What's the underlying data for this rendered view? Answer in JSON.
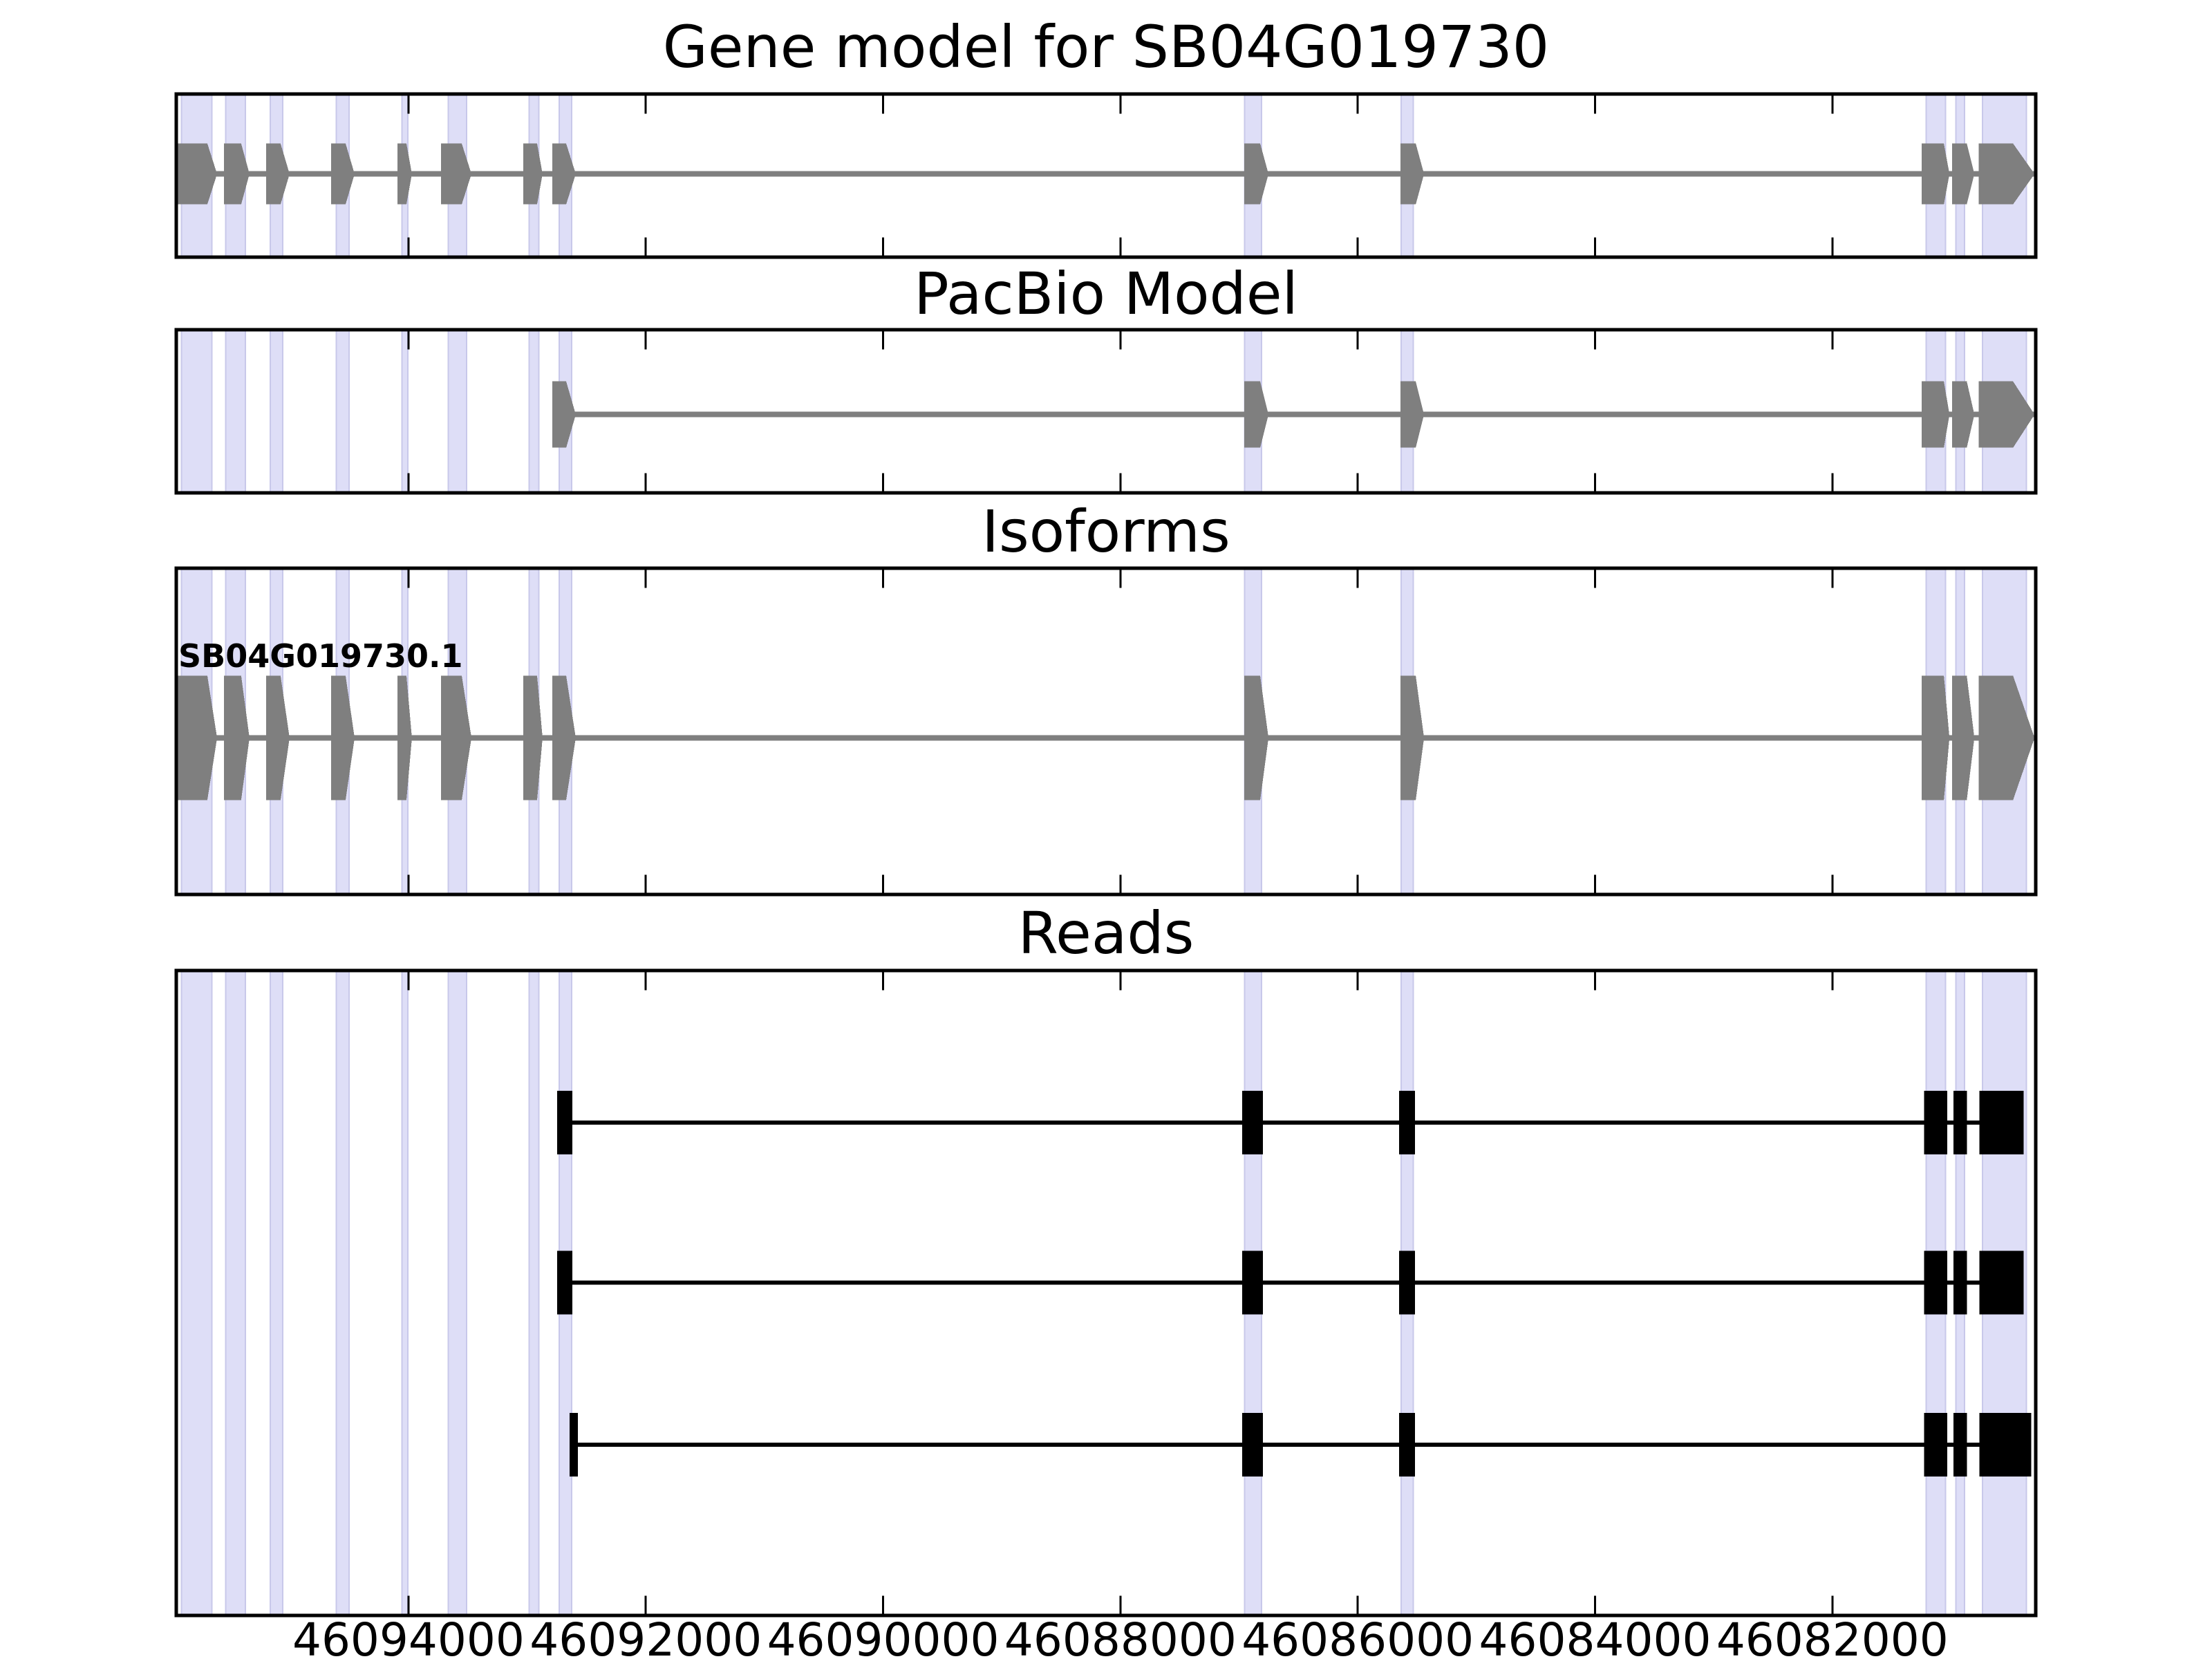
{
  "chart_data": {
    "type": "gene-model-browser",
    "figure_kind": "stacked genomic tracks",
    "x_axis": {
      "domain_left_bp": 46095957,
      "domain_right_bp": 46080286,
      "direction": "decreasing",
      "ticks": [
        {
          "pos": 46094000,
          "label": "46094000"
        },
        {
          "pos": 46092000,
          "label": "46092000"
        },
        {
          "pos": 46090000,
          "label": "46090000"
        },
        {
          "pos": 46088000,
          "label": "46088000"
        },
        {
          "pos": 46086000,
          "label": "46086000"
        },
        {
          "pos": 46084000,
          "label": "46084000"
        },
        {
          "pos": 46082000,
          "label": "46082000"
        }
      ]
    },
    "highlight_regions_bp": [
      [
        46095920,
        46095650
      ],
      [
        46095545,
        46095370
      ],
      [
        46095170,
        46095055
      ],
      [
        46094615,
        46094495
      ],
      [
        46094060,
        46094000
      ],
      [
        46093670,
        46093505
      ],
      [
        46092990,
        46092895
      ],
      [
        46092735,
        46092620
      ],
      [
        46086960,
        46086805
      ],
      [
        46085640,
        46085525
      ],
      [
        46081215,
        46081040
      ],
      [
        46080965,
        46080880
      ],
      [
        46080740,
        46080360
      ]
    ],
    "panels": [
      {
        "title": "Gene model for SB04G019730",
        "type": "gene",
        "exons": [
          {
            "from": 46095945,
            "to": 46095695,
            "tip_to": 46095613
          },
          {
            "from": 46095555,
            "to": 46095410,
            "tip_to": 46095340
          },
          {
            "from": 46095200,
            "to": 46095078,
            "tip_to": 46095002
          },
          {
            "from": 46094652,
            "to": 46094530,
            "tip_to": 46094454
          },
          {
            "from": 46094093,
            "to": 46094017,
            "tip_to": 46093971
          },
          {
            "from": 46093726,
            "to": 46093551,
            "tip_to": 46093469
          },
          {
            "from": 46093033,
            "to": 46092916,
            "tip_to": 46092870
          },
          {
            "from": 46092788,
            "to": 46092671,
            "tip_to": 46092590
          },
          {
            "from": 46086956,
            "to": 46086822,
            "tip_to": 46086752
          },
          {
            "from": 46085639,
            "to": 46085511,
            "tip_to": 46085441
          },
          {
            "from": 46081246,
            "to": 46081060,
            "tip_to": 46081013
          },
          {
            "from": 46080990,
            "to": 46080867,
            "tip_to": 46080803
          },
          {
            "from": 46080768,
            "to": 46080477,
            "tip_to": 46080296
          }
        ]
      },
      {
        "title": "PacBio Model",
        "type": "gene",
        "exons": [
          {
            "from": 46092788,
            "to": 46092671,
            "tip_to": 46092590
          },
          {
            "from": 46086956,
            "to": 46086822,
            "tip_to": 46086752
          },
          {
            "from": 46085639,
            "to": 46085511,
            "tip_to": 46085441
          },
          {
            "from": 46081246,
            "to": 46081060,
            "tip_to": 46081013
          },
          {
            "from": 46080990,
            "to": 46080867,
            "tip_to": 46080803
          },
          {
            "from": 46080768,
            "to": 46080477,
            "tip_to": 46080296
          }
        ]
      },
      {
        "title": "Isoforms",
        "type": "gene",
        "label": "SB04G019730.1",
        "exons": [
          {
            "from": 46095945,
            "to": 46095695,
            "tip_to": 46095613
          },
          {
            "from": 46095555,
            "to": 46095410,
            "tip_to": 46095340
          },
          {
            "from": 46095200,
            "to": 46095078,
            "tip_to": 46095002
          },
          {
            "from": 46094652,
            "to": 46094530,
            "tip_to": 46094454
          },
          {
            "from": 46094093,
            "to": 46094017,
            "tip_to": 46093971
          },
          {
            "from": 46093726,
            "to": 46093551,
            "tip_to": 46093469
          },
          {
            "from": 46093033,
            "to": 46092916,
            "tip_to": 46092870
          },
          {
            "from": 46092788,
            "to": 46092671,
            "tip_to": 46092590
          },
          {
            "from": 46086956,
            "to": 46086822,
            "tip_to": 46086752
          },
          {
            "from": 46085639,
            "to": 46085511,
            "tip_to": 46085441
          },
          {
            "from": 46081246,
            "to": 46081060,
            "tip_to": 46081013
          },
          {
            "from": 46080990,
            "to": 46080867,
            "tip_to": 46080803
          },
          {
            "from": 46080768,
            "to": 46080477,
            "tip_to": 46080296
          }
        ]
      },
      {
        "title": "Reads",
        "type": "reads",
        "reads": [
          {
            "start_style": "block",
            "blocks": [
              [
                46092747,
                46092619
              ],
              [
                46086973,
                46086799
              ],
              [
                46085651,
                46085517
              ],
              [
                46081228,
                46081031
              ],
              [
                46080978,
                46080867
              ],
              [
                46080762,
                46080389
              ]
            ]
          },
          {
            "start_style": "block",
            "blocks": [
              [
                46092747,
                46092619
              ],
              [
                46086973,
                46086799
              ],
              [
                46085651,
                46085517
              ],
              [
                46081228,
                46081031
              ],
              [
                46080978,
                46080867
              ],
              [
                46080762,
                46080389
              ]
            ]
          },
          {
            "start_style": "thin",
            "blocks": [
              [
                46092642,
                46092572
              ],
              [
                46086973,
                46086799
              ],
              [
                46085651,
                46085517
              ],
              [
                46081228,
                46081031
              ],
              [
                46080978,
                46080867
              ],
              [
                46080762,
                46080325
              ]
            ]
          }
        ]
      }
    ],
    "colors": {
      "exon_gray": "#7f7f7f",
      "gene_line_gray": "#7f7f7f",
      "read_black": "#000000",
      "highlight_fill": "#dedef7",
      "highlight_edge": "#c8c8ea",
      "frame": "#000000",
      "background": "#ffffff",
      "text": "#000000"
    }
  }
}
